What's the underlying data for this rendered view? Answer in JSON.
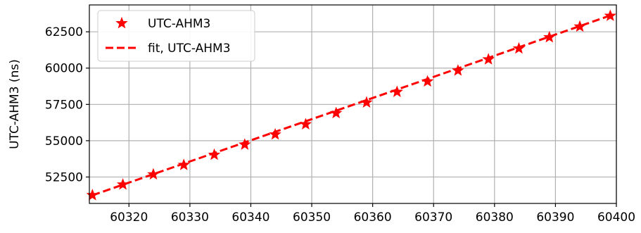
{
  "chart_data": {
    "type": "line",
    "xlabel": "",
    "ylabel": "UTC-AHM3 (ns)",
    "xlim": [
      60313.5,
      60400
    ],
    "ylim": [
      50680,
      64350
    ],
    "xticks": [
      60320,
      60330,
      60340,
      60350,
      60360,
      60370,
      60380,
      60390,
      60400
    ],
    "yticks": [
      52500,
      55000,
      57500,
      60000,
      62500
    ],
    "grid": true,
    "legend_placement": "top-left",
    "colors": {
      "series": "#ff0000",
      "grid": "#b0b0b0"
    },
    "series": [
      {
        "name": "UTC-AHM3",
        "style": "star-markers",
        "x": [
          60314,
          60319,
          60324,
          60329,
          60334,
          60339,
          60344,
          60349,
          60354,
          60359,
          60364,
          60369,
          60374,
          60379,
          60384,
          60389,
          60394,
          60399
        ],
        "y": [
          51250,
          51980,
          52680,
          53330,
          54030,
          54730,
          55430,
          56130,
          56900,
          57630,
          58360,
          59080,
          59830,
          60600,
          61350,
          62120,
          62860,
          63600
        ]
      },
      {
        "name": "fit, UTC-AHM3",
        "style": "dashed-line",
        "x": [
          60314,
          60399
        ],
        "y": [
          51240,
          63620
        ]
      }
    ]
  }
}
